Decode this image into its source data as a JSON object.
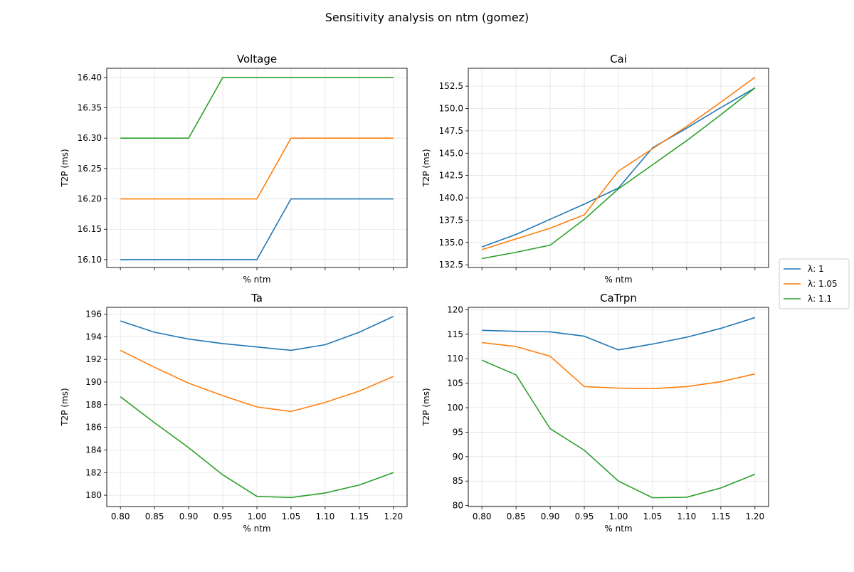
{
  "figure": {
    "suptitle": "Sensitivity analysis on ntm (gomez)"
  },
  "legend": {
    "placement": "right-center",
    "entries": [
      {
        "label": "λ: 1",
        "color": "#1f77b4"
      },
      {
        "label": "λ: 1.05",
        "color": "#ff7f0e"
      },
      {
        "label": "λ: 1.1",
        "color": "#2ca02c"
      }
    ]
  },
  "chart_data": [
    {
      "type": "line",
      "title": "Voltage",
      "xlabel": "% ntm",
      "ylabel": "T2P (ms)",
      "x": [
        0.8,
        0.85,
        0.9,
        0.95,
        1.0,
        1.05,
        1.1,
        1.15,
        1.2
      ],
      "xlim": [
        0.78,
        1.22
      ],
      "ylim": [
        16.087,
        16.415
      ],
      "yticks": [
        "16.10",
        "16.15",
        "16.20",
        "16.25",
        "16.30",
        "16.35",
        "16.40"
      ],
      "show_xticklabels": false,
      "grid": true,
      "series": [
        {
          "name": "λ: 1",
          "color": "#1f77b4",
          "values": [
            16.1,
            16.1,
            16.1,
            16.1,
            16.1,
            16.2,
            16.2,
            16.2,
            16.2
          ]
        },
        {
          "name": "λ: 1.05",
          "color": "#ff7f0e",
          "values": [
            16.2,
            16.2,
            16.2,
            16.2,
            16.2,
            16.3,
            16.3,
            16.3,
            16.3
          ]
        },
        {
          "name": "λ: 1.1",
          "color": "#2ca02c",
          "values": [
            16.3,
            16.3,
            16.3,
            16.4,
            16.4,
            16.4,
            16.4,
            16.4,
            16.4
          ]
        }
      ]
    },
    {
      "type": "line",
      "title": "Cai",
      "xlabel": "% ntm",
      "ylabel": "T2P (ms)",
      "x": [
        0.8,
        0.85,
        0.9,
        0.95,
        1.0,
        1.05,
        1.1,
        1.15,
        1.2
      ],
      "xlim": [
        0.78,
        1.22
      ],
      "ylim": [
        132.2,
        154.5
      ],
      "yticks": [
        "132.5",
        "135.0",
        "137.5",
        "140.0",
        "142.5",
        "145.0",
        "147.5",
        "150.0",
        "152.5"
      ],
      "show_xticklabels": false,
      "grid": true,
      "series": [
        {
          "name": "λ: 1",
          "color": "#1f77b4",
          "values": [
            134.5,
            135.9,
            137.6,
            139.3,
            141.1,
            145.6,
            147.8,
            150.1,
            152.3
          ]
        },
        {
          "name": "λ: 1.05",
          "color": "#ff7f0e",
          "values": [
            134.2,
            135.4,
            136.6,
            138.1,
            143.0,
            145.5,
            148.0,
            150.7,
            153.5
          ]
        },
        {
          "name": "λ: 1.1",
          "color": "#2ca02c",
          "values": [
            133.2,
            133.9,
            134.7,
            137.6,
            141.0,
            143.7,
            146.4,
            149.3,
            152.3
          ]
        }
      ]
    },
    {
      "type": "line",
      "title": "Ta",
      "xlabel": "% ntm",
      "ylabel": "T2P (ms)",
      "x": [
        0.8,
        0.85,
        0.9,
        0.95,
        1.0,
        1.05,
        1.1,
        1.15,
        1.2
      ],
      "xlim": [
        0.78,
        1.22
      ],
      "ylim": [
        179.0,
        196.6
      ],
      "yticks": [
        "180",
        "182",
        "184",
        "186",
        "188",
        "190",
        "192",
        "194",
        "196"
      ],
      "show_xticklabels": true,
      "xticks": [
        "0.80",
        "0.85",
        "0.90",
        "0.95",
        "1.00",
        "1.05",
        "1.10",
        "1.15",
        "1.20"
      ],
      "grid": true,
      "series": [
        {
          "name": "λ: 1",
          "color": "#1f77b4",
          "values": [
            195.4,
            194.4,
            193.8,
            193.4,
            193.1,
            192.8,
            193.3,
            194.4,
            195.8
          ]
        },
        {
          "name": "λ: 1.05",
          "color": "#ff7f0e",
          "values": [
            192.8,
            191.3,
            189.9,
            188.8,
            187.8,
            187.4,
            188.2,
            189.2,
            190.5
          ]
        },
        {
          "name": "λ: 1.1",
          "color": "#2ca02c",
          "values": [
            188.7,
            186.4,
            184.2,
            181.8,
            179.9,
            179.8,
            180.2,
            180.9,
            182.0
          ]
        }
      ]
    },
    {
      "type": "line",
      "title": "CaTrpn",
      "xlabel": "% ntm",
      "ylabel": "T2P (ms)",
      "x": [
        0.8,
        0.85,
        0.9,
        0.95,
        1.0,
        1.05,
        1.1,
        1.15,
        1.2
      ],
      "xlim": [
        0.78,
        1.22
      ],
      "ylim": [
        79.8,
        120.5
      ],
      "yticks": [
        "80",
        "85",
        "90",
        "95",
        "100",
        "105",
        "110",
        "115",
        "120"
      ],
      "show_xticklabels": true,
      "xticks": [
        "0.80",
        "0.85",
        "0.90",
        "0.95",
        "1.00",
        "1.05",
        "1.10",
        "1.15",
        "1.20"
      ],
      "grid": true,
      "series": [
        {
          "name": "λ: 1",
          "color": "#1f77b4",
          "values": [
            115.8,
            115.6,
            115.5,
            114.6,
            111.8,
            113.0,
            114.4,
            116.2,
            118.4
          ]
        },
        {
          "name": "λ: 1.05",
          "color": "#ff7f0e",
          "values": [
            113.3,
            112.5,
            110.5,
            104.3,
            104.0,
            103.9,
            104.3,
            105.3,
            106.9
          ]
        },
        {
          "name": "λ: 1.1",
          "color": "#2ca02c",
          "values": [
            109.7,
            106.7,
            95.7,
            91.3,
            85.0,
            81.6,
            81.7,
            83.6,
            86.4
          ]
        }
      ]
    }
  ]
}
